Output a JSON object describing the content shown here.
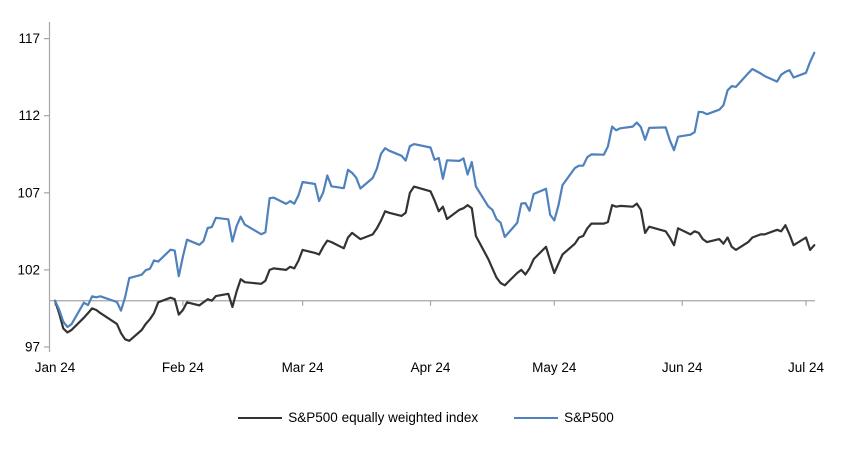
{
  "chart_data": {
    "type": "line",
    "title": "",
    "x_axis": {
      "type": "date",
      "ticks": [
        {
          "label": "Jan 24",
          "date": "01-01"
        },
        {
          "label": "Feb 24",
          "date": "02-01"
        },
        {
          "label": "Mar 24",
          "date": "03-01"
        },
        {
          "label": "Apr 24",
          "date": "04-01"
        },
        {
          "label": "May 24",
          "date": "05-01"
        },
        {
          "label": "Jun 24",
          "date": "06-01"
        },
        {
          "label": "Jul 24",
          "date": "07-01"
        }
      ]
    },
    "y_axis": {
      "ticks": [
        97,
        102,
        107,
        112,
        117
      ],
      "min": 97,
      "max": 117,
      "baseline": 100
    },
    "grid": "off",
    "legend_position": "bottom",
    "axis_color": "#a6a6a6",
    "series": [
      {
        "name": "S&P500 equally weighted index",
        "color": "#333333",
        "points": [
          [
            "01-01",
            100.0
          ],
          [
            "01-02",
            99.2
          ],
          [
            "01-03",
            98.2
          ],
          [
            "01-04",
            97.95
          ],
          [
            "01-05",
            98.1
          ],
          [
            "01-08",
            98.9
          ],
          [
            "01-09",
            99.2
          ],
          [
            "01-10",
            99.5
          ],
          [
            "01-11",
            99.4
          ],
          [
            "01-12",
            99.2
          ],
          [
            "01-16",
            98.5
          ],
          [
            "01-17",
            97.9
          ],
          [
            "01-18",
            97.5
          ],
          [
            "01-19",
            97.4
          ],
          [
            "01-22",
            98.1
          ],
          [
            "01-23",
            98.5
          ],
          [
            "01-24",
            98.8
          ],
          [
            "01-25",
            99.2
          ],
          [
            "01-26",
            99.9
          ],
          [
            "01-29",
            100.2
          ],
          [
            "01-30",
            100.1
          ],
          [
            "01-31",
            99.1
          ],
          [
            "02-01",
            99.4
          ],
          [
            "02-02",
            99.9
          ],
          [
            "02-05",
            99.7
          ],
          [
            "02-06",
            99.9
          ],
          [
            "02-07",
            100.1
          ],
          [
            "02-08",
            100.0
          ],
          [
            "02-09",
            100.3
          ],
          [
            "02-12",
            100.45
          ],
          [
            "02-13",
            99.6
          ],
          [
            "02-14",
            100.6
          ],
          [
            "02-15",
            101.4
          ],
          [
            "02-16",
            101.2
          ],
          [
            "02-20",
            101.1
          ],
          [
            "02-21",
            101.3
          ],
          [
            "02-22",
            102.0
          ],
          [
            "02-23",
            102.1
          ],
          [
            "02-26",
            102.0
          ],
          [
            "02-27",
            102.2
          ],
          [
            "02-28",
            102.1
          ],
          [
            "02-29",
            102.6
          ],
          [
            "03-01",
            103.3
          ],
          [
            "03-04",
            103.1
          ],
          [
            "03-05",
            103.0
          ],
          [
            "03-06",
            103.5
          ],
          [
            "03-07",
            103.9
          ],
          [
            "03-08",
            103.8
          ],
          [
            "03-11",
            103.4
          ],
          [
            "03-12",
            104.1
          ],
          [
            "03-13",
            104.4
          ],
          [
            "03-14",
            104.2
          ],
          [
            "03-15",
            104.0
          ],
          [
            "03-18",
            104.3
          ],
          [
            "03-19",
            104.7
          ],
          [
            "03-20",
            105.2
          ],
          [
            "03-21",
            105.8
          ],
          [
            "03-22",
            105.7
          ],
          [
            "03-25",
            105.5
          ],
          [
            "03-26",
            105.7
          ],
          [
            "03-27",
            107.0
          ],
          [
            "03-28",
            107.4
          ],
          [
            "04-01",
            107.1
          ],
          [
            "04-02",
            106.5
          ],
          [
            "04-03",
            105.8
          ],
          [
            "04-04",
            106.1
          ],
          [
            "04-05",
            105.3
          ],
          [
            "04-08",
            105.9
          ],
          [
            "04-09",
            106.0
          ],
          [
            "04-10",
            106.2
          ],
          [
            "04-11",
            106.0
          ],
          [
            "04-12",
            104.2
          ],
          [
            "04-15",
            102.7
          ],
          [
            "04-16",
            102.1
          ],
          [
            "04-17",
            101.5
          ],
          [
            "04-18",
            101.15
          ],
          [
            "04-19",
            101.0
          ],
          [
            "04-22",
            101.8
          ],
          [
            "04-23",
            102.0
          ],
          [
            "04-24",
            101.7
          ],
          [
            "04-25",
            102.1
          ],
          [
            "04-26",
            102.7
          ],
          [
            "04-29",
            103.5
          ],
          [
            "04-30",
            102.6
          ],
          [
            "05-01",
            101.8
          ],
          [
            "05-02",
            102.4
          ],
          [
            "05-03",
            103.0
          ],
          [
            "05-06",
            103.7
          ],
          [
            "05-07",
            104.1
          ],
          [
            "05-08",
            104.2
          ],
          [
            "05-09",
            104.7
          ],
          [
            "05-10",
            105.0
          ],
          [
            "05-13",
            105.0
          ],
          [
            "05-14",
            105.1
          ],
          [
            "05-15",
            106.2
          ],
          [
            "05-16",
            106.1
          ],
          [
            "05-17",
            106.15
          ],
          [
            "05-20",
            106.1
          ],
          [
            "05-21",
            106.3
          ],
          [
            "05-22",
            105.9
          ],
          [
            "05-23",
            104.4
          ],
          [
            "05-24",
            104.8
          ],
          [
            "05-28",
            104.5
          ],
          [
            "05-29",
            104.1
          ],
          [
            "05-30",
            103.6
          ],
          [
            "05-31",
            104.7
          ],
          [
            "06-03",
            104.3
          ],
          [
            "06-04",
            104.5
          ],
          [
            "06-05",
            104.4
          ],
          [
            "06-06",
            104.0
          ],
          [
            "06-07",
            103.8
          ],
          [
            "06-10",
            104.0
          ],
          [
            "06-11",
            103.7
          ],
          [
            "06-12",
            104.1
          ],
          [
            "06-13",
            103.5
          ],
          [
            "06-14",
            103.3
          ],
          [
            "06-17",
            103.8
          ],
          [
            "06-18",
            104.1
          ],
          [
            "06-20",
            104.3
          ],
          [
            "06-21",
            104.3
          ],
          [
            "06-24",
            104.6
          ],
          [
            "06-25",
            104.5
          ],
          [
            "06-26",
            104.9
          ],
          [
            "06-27",
            104.3
          ],
          [
            "06-28",
            103.6
          ],
          [
            "07-01",
            104.1
          ],
          [
            "07-02",
            103.3
          ],
          [
            "07-03",
            103.6
          ]
        ]
      },
      {
        "name": "S&P500",
        "color": "#4f81bd",
        "points": [
          [
            "01-01",
            100.0
          ],
          [
            "01-02",
            99.43
          ],
          [
            "01-03",
            98.64
          ],
          [
            "01-04",
            98.3
          ],
          [
            "01-05",
            98.48
          ],
          [
            "01-08",
            99.87
          ],
          [
            "01-09",
            99.72
          ],
          [
            "01-10",
            100.29
          ],
          [
            "01-11",
            100.22
          ],
          [
            "01-12",
            100.29
          ],
          [
            "01-16",
            99.92
          ],
          [
            "01-17",
            99.36
          ],
          [
            "01-18",
            100.23
          ],
          [
            "01-19",
            101.47
          ],
          [
            "01-22",
            101.69
          ],
          [
            "01-23",
            101.99
          ],
          [
            "01-24",
            102.07
          ],
          [
            "01-25",
            102.61
          ],
          [
            "01-26",
            102.54
          ],
          [
            "01-29",
            103.31
          ],
          [
            "01-30",
            103.25
          ],
          [
            "01-31",
            101.59
          ],
          [
            "02-01",
            102.86
          ],
          [
            "02-02",
            103.96
          ],
          [
            "02-05",
            103.63
          ],
          [
            "02-06",
            103.87
          ],
          [
            "02-07",
            104.72
          ],
          [
            "02-08",
            104.78
          ],
          [
            "02-09",
            105.38
          ],
          [
            "02-12",
            105.28
          ],
          [
            "02-13",
            103.84
          ],
          [
            "02-14",
            104.84
          ],
          [
            "02-15",
            105.45
          ],
          [
            "02-16",
            104.94
          ],
          [
            "02-20",
            104.31
          ],
          [
            "02-21",
            104.44
          ],
          [
            "02-22",
            106.65
          ],
          [
            "02-23",
            106.69
          ],
          [
            "02-26",
            106.28
          ],
          [
            "02-27",
            106.46
          ],
          [
            "02-28",
            106.29
          ],
          [
            "02-29",
            106.84
          ],
          [
            "03-01",
            107.7
          ],
          [
            "03-04",
            107.57
          ],
          [
            "03-05",
            106.47
          ],
          [
            "03-06",
            107.02
          ],
          [
            "03-07",
            108.12
          ],
          [
            "03-08",
            107.42
          ],
          [
            "03-11",
            107.3
          ],
          [
            "03-12",
            108.5
          ],
          [
            "03-13",
            108.29
          ],
          [
            "03-14",
            107.98
          ],
          [
            "03-15",
            107.28
          ],
          [
            "03-18",
            107.96
          ],
          [
            "03-19",
            108.57
          ],
          [
            "03-20",
            109.53
          ],
          [
            "03-21",
            109.89
          ],
          [
            "03-22",
            109.73
          ],
          [
            "03-25",
            109.4
          ],
          [
            "03-26",
            109.09
          ],
          [
            "03-27",
            110.03
          ],
          [
            "03-28",
            110.16
          ],
          [
            "04-01",
            109.94
          ],
          [
            "04-02",
            109.14
          ],
          [
            "04-03",
            109.26
          ],
          [
            "04-04",
            107.91
          ],
          [
            "04-05",
            109.11
          ],
          [
            "04-08",
            109.07
          ],
          [
            "04-09",
            109.23
          ],
          [
            "04-10",
            108.19
          ],
          [
            "04-11",
            109.0
          ],
          [
            "04-12",
            107.41
          ],
          [
            "04-15",
            106.12
          ],
          [
            "04-16",
            105.9
          ],
          [
            "04-17",
            105.29
          ],
          [
            "04-18",
            105.06
          ],
          [
            "04-19",
            104.14
          ],
          [
            "04-22",
            105.05
          ],
          [
            "04-23",
            106.3
          ],
          [
            "04-24",
            106.33
          ],
          [
            "04-25",
            105.84
          ],
          [
            "04-26",
            106.92
          ],
          [
            "04-29",
            107.26
          ],
          [
            "04-30",
            105.57
          ],
          [
            "05-01",
            105.21
          ],
          [
            "05-02",
            106.17
          ],
          [
            "05-03",
            107.5
          ],
          [
            "05-06",
            108.61
          ],
          [
            "05-07",
            108.76
          ],
          [
            "05-08",
            108.76
          ],
          [
            "05-09",
            109.31
          ],
          [
            "05-10",
            109.49
          ],
          [
            "05-13",
            109.47
          ],
          [
            "05-14",
            110.0
          ],
          [
            "05-15",
            111.29
          ],
          [
            "05-16",
            111.05
          ],
          [
            "05-17",
            111.18
          ],
          [
            "05-20",
            111.29
          ],
          [
            "05-21",
            111.56
          ],
          [
            "05-22",
            111.26
          ],
          [
            "05-23",
            110.44
          ],
          [
            "05-24",
            111.21
          ],
          [
            "05-28",
            111.24
          ],
          [
            "05-29",
            110.42
          ],
          [
            "05-30",
            109.76
          ],
          [
            "05-31",
            110.64
          ],
          [
            "06-03",
            110.77
          ],
          [
            "06-04",
            110.93
          ],
          [
            "06-05",
            112.25
          ],
          [
            "06-06",
            112.23
          ],
          [
            "06-07",
            112.1
          ],
          [
            "06-10",
            112.39
          ],
          [
            "06-11",
            112.69
          ],
          [
            "06-12",
            113.65
          ],
          [
            "06-13",
            113.92
          ],
          [
            "06-14",
            113.87
          ],
          [
            "06-17",
            114.75
          ],
          [
            "06-18",
            115.03
          ],
          [
            "06-20",
            114.74
          ],
          [
            "06-21",
            114.57
          ],
          [
            "06-24",
            114.21
          ],
          [
            "06-25",
            114.66
          ],
          [
            "06-26",
            114.84
          ],
          [
            "06-27",
            114.95
          ],
          [
            "06-28",
            114.48
          ],
          [
            "07-01",
            114.78
          ],
          [
            "07-02",
            115.49
          ],
          [
            "07-03",
            116.08
          ]
        ]
      }
    ]
  }
}
